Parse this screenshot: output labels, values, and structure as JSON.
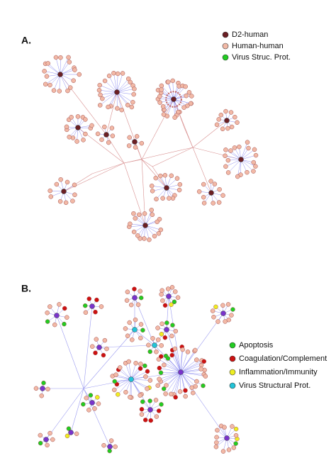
{
  "panels": [
    {
      "label": "A.",
      "legend": [
        {
          "label": "D2-human",
          "color": "#6b1f24"
        },
        {
          "label": "Human-human",
          "color": "#f2b9a6"
        },
        {
          "label": "Virus Struc. Prot.",
          "color": "#22cc22"
        }
      ]
    },
    {
      "label": "B.",
      "legend": [
        {
          "label": "Apoptosis",
          "color": "#22cc22"
        },
        {
          "label": "Coagulation/Complement",
          "color": "#cc1111"
        },
        {
          "label": "Inflammation/Immunity",
          "color": "#eeee22"
        },
        {
          "label": "Virus Structural Prot.",
          "color": "#22c4d8"
        }
      ]
    }
  ]
}
